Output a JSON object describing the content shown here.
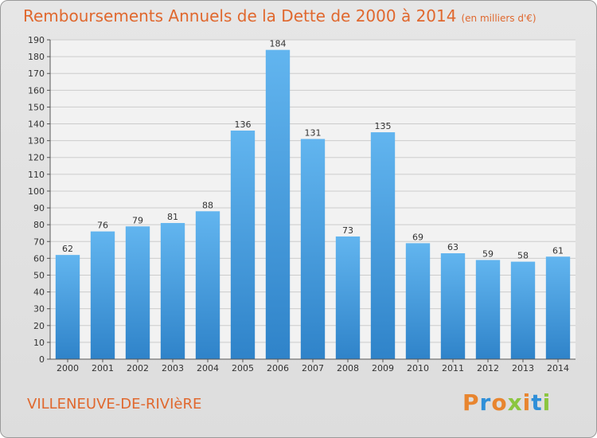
{
  "title": "Remboursements Annuels de la Dette de 2000 à 2014",
  "subtitle": "(en milliers d'€)",
  "location": "VILLENEUVE-DE-RIVIèRE",
  "brand": {
    "text": "Proxiti",
    "colors": [
      "#e8852f",
      "#2f8fd8",
      "#e8852f",
      "#8bc63f",
      "#e8852f",
      "#2f8fd8",
      "#8bc63f"
    ]
  },
  "colors": {
    "bar_light": "#62b5ef",
    "bar_dark": "#2f83c9",
    "accent": "#e0682e"
  },
  "chart_data": {
    "type": "bar",
    "categories": [
      "2000",
      "2001",
      "2002",
      "2003",
      "2004",
      "2005",
      "2006",
      "2007",
      "2008",
      "2009",
      "2010",
      "2011",
      "2012",
      "2013",
      "2014"
    ],
    "values": [
      62,
      76,
      79,
      81,
      88,
      136,
      184,
      131,
      73,
      135,
      69,
      63,
      59,
      58,
      61
    ],
    "ylim": [
      0,
      190
    ],
    "ytick_step": 10,
    "grid": true,
    "xlabel": "",
    "ylabel": ""
  }
}
